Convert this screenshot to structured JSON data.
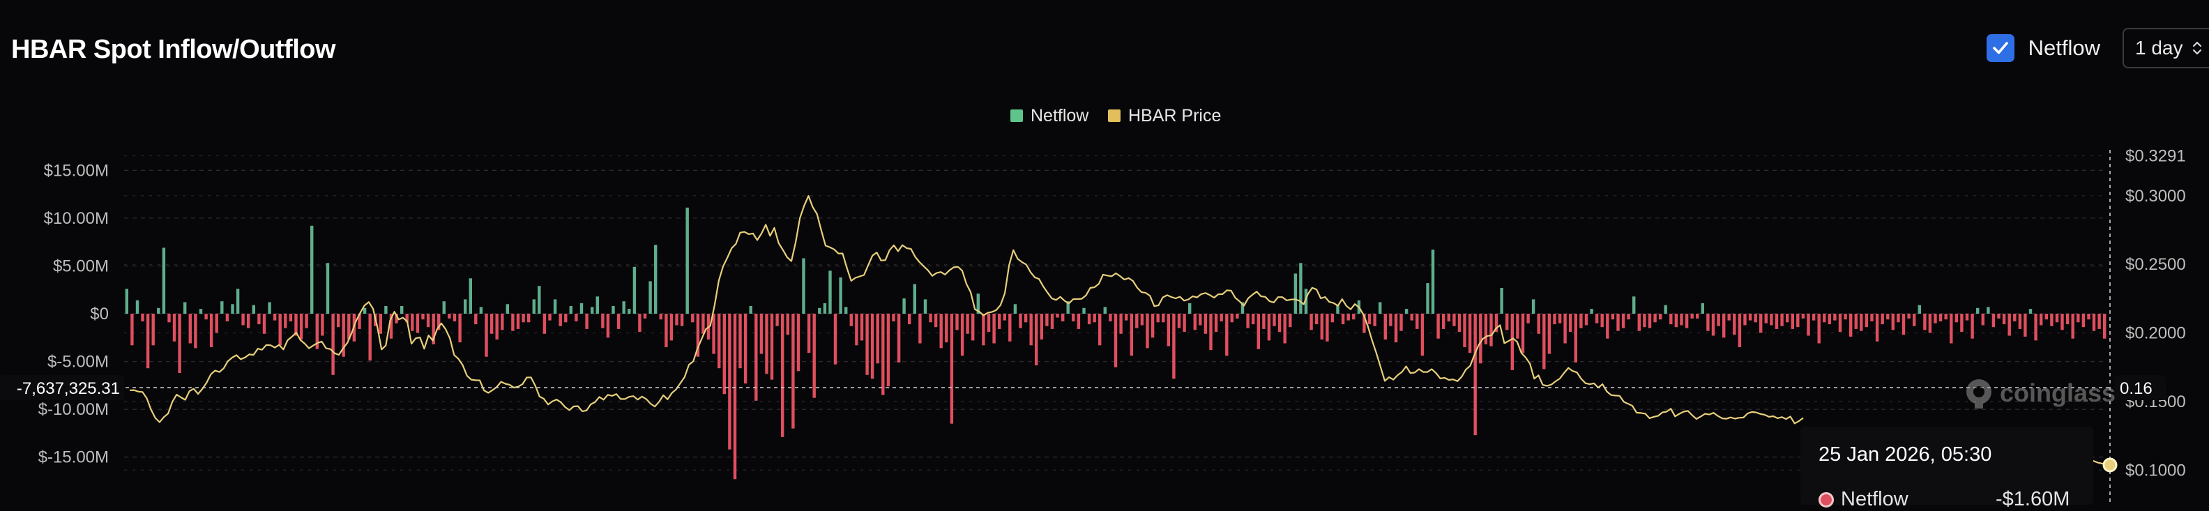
{
  "header": {
    "title": "HBAR Spot Inflow/Outflow",
    "netflow_toggle_label": "Netflow",
    "netflow_checked": true,
    "interval_select_value": "1 day"
  },
  "tooltip": {
    "date": "25 Jan 2026, 05:30",
    "series_label": "Netflow",
    "series_value": "-$1.60M"
  },
  "crosshair": {
    "left_value_label": "-7,637,325.31",
    "right_value_label": "0.16"
  },
  "watermark": "coinglass",
  "colors": {
    "inflow": "#5fae8e",
    "outflow": "#e04f5f",
    "price_line": "#e7cf7c",
    "legend_netflow": "#5fc48a",
    "legend_price": "#e3be5d",
    "background": "#070709",
    "grid": "#2a2a2e"
  },
  "chart_data": {
    "type": "bar",
    "legend": [
      "Netflow",
      "HBAR Price"
    ],
    "legend_position": "top-center",
    "grid": true,
    "left_axis": {
      "ticks": [
        15000000,
        10000000,
        5000000,
        0,
        -5000000,
        -10000000,
        -15000000
      ],
      "tick_labels": [
        "$15.00M",
        "$10.00M",
        "$5.00M",
        "$0",
        "$-5.00M",
        "$-10.00M",
        "$-15.00M"
      ],
      "ylim": [
        -17500000,
        17500000
      ]
    },
    "right_axis": {
      "ticks": [
        0.3291,
        0.3,
        0.25,
        0.2,
        0.15,
        0.1
      ],
      "tick_labels": [
        "$0.3291",
        "$0.3000",
        "$0.2500",
        "$0.2000",
        "$0.1500",
        "$0.1000"
      ],
      "ylim": [
        0.092,
        0.336
      ]
    },
    "series": [
      {
        "name": "Netflow",
        "values": [
          2.6,
          -3.3,
          1.4,
          -0.8,
          -5.7,
          -3.3,
          0.6,
          6.9,
          -0.9,
          -2.9,
          -6.2,
          1.2,
          -3.1,
          -3.6,
          0.5,
          -0.6,
          -3.5,
          -2.0,
          1.3,
          -0.8,
          1.0,
          2.6,
          -1.2,
          -1.5,
          0.9,
          -1.1,
          -2.1,
          1.2,
          -0.7,
          -3.3,
          -1.5,
          -0.8,
          -2.3,
          -2.7,
          -1.5,
          9.2,
          -3.7,
          -2.3,
          5.3,
          -6.4,
          -1.4,
          -4.5,
          -2.7,
          -2.9,
          -1.6,
          0.6,
          -4.9,
          -1.3,
          -2.1,
          0.8,
          -2.6,
          -1.0,
          0.8,
          -0.9,
          -1.8,
          -2.0,
          -0.6,
          -1.4,
          -3.2,
          -1.7,
          1.3,
          -0.5,
          -0.8,
          -3.0,
          1.5,
          3.7,
          -1.1,
          0.7,
          -4.5,
          -2.1,
          -2.7,
          -1.7,
          1.0,
          -1.8,
          -1.6,
          -0.9,
          -0.9,
          1.5,
          2.9,
          -2.1,
          -0.7,
          1.5,
          -1.3,
          -0.9,
          0.8,
          -0.8,
          1.1,
          -1.6,
          0.7,
          1.8,
          -1.5,
          -2.5,
          0.8,
          -1.6,
          1.3,
          0.5,
          4.9,
          -1.9,
          -0.5,
          3.4,
          7.2,
          -0.6,
          -3.5,
          -2.8,
          -1.2,
          -1.3,
          11.1,
          -0.9,
          -4.5,
          -2.1,
          -2.7,
          -4.2,
          -5.7,
          -8.4,
          -14.2,
          -17.3,
          -5.7,
          -7.3,
          0.8,
          -9.1,
          -4.2,
          -6.3,
          -6.9,
          -1.3,
          -12.9,
          -2.2,
          -12.0,
          -6.0,
          5.8,
          -4.1,
          -8.8,
          0.6,
          1.1,
          4.5,
          -5.3,
          3.8,
          0.7,
          -1.3,
          -3.3,
          -2.8,
          -6.4,
          -6.8,
          -5.2,
          -8.5,
          -7.6,
          -0.8,
          -5.1,
          1.6,
          -1.1,
          3.1,
          -3.1,
          1.5,
          -0.9,
          -1.4,
          -3.6,
          -3.0,
          -11.5,
          -1.7,
          -4.4,
          -2.1,
          -2.8,
          2.1,
          -3.3,
          -1.9,
          -3.1,
          -1.6,
          -0.7,
          -2.9,
          1.0,
          -1.5,
          -0.9,
          -3.3,
          -5.4,
          -2.7,
          -1.3,
          -1.6,
          -0.4,
          -0.8,
          1.3,
          -0.8,
          -1.6,
          0.6,
          -1.1,
          -0.9,
          -3.3,
          0.7,
          -0.8,
          -5.6,
          -2.1,
          -0.7,
          -4.4,
          -1.5,
          -1.2,
          -3.6,
          -2.5,
          -0.9,
          -0.9,
          -3.4,
          -6.8,
          -1.5,
          -1.9,
          1.1,
          -1.7,
          -1.2,
          -2.1,
          -3.8,
          -1.9,
          -0.8,
          -4.4,
          -0.9,
          -0.5,
          1.2,
          -1.5,
          -1.1,
          -3.7,
          -1.6,
          -2.8,
          -1.3,
          -1.9,
          -3.1,
          -1.4,
          4.2,
          5.3,
          2.6,
          -1.7,
          -1.1,
          -2.7,
          -2.9,
          -0.9,
          0.9,
          -1.1,
          -0.7,
          -0.6,
          1.4,
          -2.0,
          -1.1,
          -1.3,
          1.2,
          -2.7,
          -1.3,
          -3.0,
          -1.8,
          0.5,
          -0.7,
          -1.6,
          -4.4,
          3.2,
          6.7,
          -2.6,
          -1.6,
          -0.8,
          -1.3,
          -1.9,
          -3.5,
          -4.1,
          -12.7,
          -5.2,
          -3.2,
          -3.4,
          -1.9,
          2.7,
          -1.7,
          -5.9,
          -2.6,
          -4.1,
          -1.0,
          1.5,
          -2.1,
          -5.8,
          -4.2,
          -1.1,
          -1.0,
          -3.1,
          -1.9,
          -5.1,
          -1.5,
          -1.2,
          0.5,
          -1.0,
          -1.4,
          -2.6,
          -0.6,
          -1.8,
          -1.5,
          -0.6,
          1.8,
          -1.8,
          -1.4,
          -1.5,
          -0.9,
          -0.6,
          0.9,
          -1.1,
          -1.4,
          -1.2,
          -1.5,
          -0.5,
          -0.5,
          1.1,
          -1.8,
          -2.3,
          -1.3,
          -2.5,
          -0.7,
          -2.2,
          -3.5,
          -1.2,
          -0.7,
          -0.9,
          -2.0,
          -1.0,
          -1.2,
          -1.6,
          -1.3,
          -0.9,
          -1.6,
          -1.4,
          -0.5,
          -2.3,
          -0.7,
          -3.1,
          -0.9,
          -1.1,
          -0.7,
          -1.9,
          -0.6,
          -2.4,
          -1.6,
          -1.8,
          -1.4,
          -0.8,
          -2.9,
          -1.1,
          -0.6,
          -1.7,
          -0.9,
          -2.2,
          -0.5,
          -1.3,
          0.9,
          -1.7,
          -2.0,
          -1.0,
          -0.8,
          -0.6,
          -3.1,
          -0.9,
          -1.9,
          -0.7,
          -2.6,
          0.6,
          -1.2,
          0.7,
          -1.4,
          -0.5,
          -1.1,
          -2.3,
          -0.8,
          -1.6,
          -2.4,
          0.5,
          -2.8,
          -1.2,
          -0.6,
          -1.3,
          -0.9,
          -1.7,
          -1.1,
          -2.6,
          -0.9,
          -1.4,
          -0.6,
          -1.8,
          -1.6,
          -2.6
        ]
      },
      {
        "name": "HBAR Price",
        "values": [
          0.1582,
          0.1583,
          0.1572,
          0.1569,
          0.1523,
          0.1441,
          0.138,
          0.1349,
          0.1386,
          0.1412,
          0.1498,
          0.155,
          0.153,
          0.1512,
          0.1575,
          0.1593,
          0.1555,
          0.1591,
          0.1636,
          0.1697,
          0.1725,
          0.1715,
          0.1741,
          0.1794,
          0.182,
          0.1838,
          0.1808,
          0.1821,
          0.1843,
          0.184,
          0.1885,
          0.1877,
          0.1912,
          0.191,
          0.1893,
          0.1913,
          0.1879,
          0.1947,
          0.1973,
          0.2003,
          0.1948,
          0.1922,
          0.1888,
          0.1908,
          0.1927,
          0.1937,
          0.1888,
          0.1882,
          0.1852,
          0.184,
          0.1888,
          0.1928,
          0.2,
          0.2086,
          0.2146,
          0.22,
          0.2225,
          0.2176,
          0.2046,
          0.1879,
          0.1908,
          0.209,
          0.2154,
          0.2098,
          0.2111,
          0.2084,
          0.1921,
          0.1961,
          0.1967,
          0.1885,
          0.1982,
          0.1945,
          0.2026,
          0.207,
          0.2027,
          0.1961,
          0.1839,
          0.1811,
          0.1765,
          0.1688,
          0.1659,
          0.1655,
          0.1654,
          0.158,
          0.1563,
          0.1583,
          0.1606,
          0.1644,
          0.1629,
          0.1622,
          0.1601,
          0.1608,
          0.1626,
          0.1675,
          0.1676,
          0.1616,
          0.1536,
          0.152,
          0.1478,
          0.1501,
          0.1514,
          0.1494,
          0.1459,
          0.1437,
          0.1464,
          0.1466,
          0.1429,
          0.1434,
          0.1479,
          0.1495,
          0.1533,
          0.1513,
          0.1549,
          0.1541,
          0.1554,
          0.1518,
          0.1518,
          0.1534,
          0.1539,
          0.1513,
          0.1536,
          0.1518,
          0.1484,
          0.1463,
          0.1498,
          0.1546,
          0.1516,
          0.1562,
          0.1589,
          0.1634,
          0.1679,
          0.1768,
          0.1793,
          0.1886,
          0.1958,
          0.2028,
          0.2052,
          0.2202,
          0.2382,
          0.2485,
          0.2548,
          0.2618,
          0.2649,
          0.2731,
          0.2737,
          0.272,
          0.2725,
          0.2677,
          0.2725,
          0.2789,
          0.2708,
          0.2766,
          0.2656,
          0.2606,
          0.2551,
          0.2524,
          0.2661,
          0.2838,
          0.2928,
          0.2999,
          0.2917,
          0.2867,
          0.2748,
          0.2636,
          0.2625,
          0.2609,
          0.2579,
          0.2579,
          0.2473,
          0.238,
          0.2402,
          0.2412,
          0.2422,
          0.2495,
          0.2564,
          0.2587,
          0.2528,
          0.2531,
          0.2604,
          0.2639,
          0.2596,
          0.264,
          0.2618,
          0.2613,
          0.2555,
          0.2516,
          0.2486,
          0.2456,
          0.2416,
          0.2437,
          0.2444,
          0.2425,
          0.2456,
          0.2478,
          0.2482,
          0.2454,
          0.2357,
          0.2296,
          0.2172,
          0.2155,
          0.2128,
          0.2147,
          0.2153,
          0.2167,
          0.2204,
          0.229,
          0.2494,
          0.2604,
          0.254,
          0.2516,
          0.2499,
          0.2444,
          0.2405,
          0.2393,
          0.2339,
          0.2294,
          0.2252,
          0.224,
          0.2263,
          0.2234,
          0.2214,
          0.2246,
          0.2247,
          0.2249,
          0.2273,
          0.2328,
          0.2333,
          0.2357,
          0.2425,
          0.2418,
          0.2413,
          0.2435,
          0.2414,
          0.2389,
          0.24,
          0.2379,
          0.233,
          0.2297,
          0.2292,
          0.227,
          0.2195,
          0.2201,
          0.2259,
          0.2275,
          0.2262,
          0.2252,
          0.2264,
          0.2235,
          0.2244,
          0.2267,
          0.2259,
          0.2283,
          0.2291,
          0.2276,
          0.2257,
          0.2282,
          0.2283,
          0.2311,
          0.2308,
          0.2255,
          0.223,
          0.2198,
          0.2253,
          0.2279,
          0.2301,
          0.2267,
          0.2263,
          0.2231,
          0.2222,
          0.2261,
          0.2261,
          0.2237,
          0.2243,
          0.2245,
          0.2234,
          0.2209,
          0.2284,
          0.2329,
          0.2317,
          0.2252,
          0.2262,
          0.2226,
          0.2218,
          0.2198,
          0.2246,
          0.2197,
          0.2172,
          0.221,
          0.2185,
          0.2133,
          0.2052,
          0.1948,
          0.1854,
          0.1752,
          0.165,
          0.1677,
          0.1659,
          0.1692,
          0.1715,
          0.1756,
          0.1707,
          0.1711,
          0.1736,
          0.1715,
          0.1715,
          0.1736,
          0.1707,
          0.1668,
          0.1673,
          0.1657,
          0.1661,
          0.1648,
          0.168,
          0.1733,
          0.176,
          0.1841,
          0.1913,
          0.1958,
          0.1978,
          0.1983,
          0.2031,
          0.2056,
          0.1925,
          0.1941,
          0.196,
          0.1935,
          0.1854,
          0.1821,
          0.1775,
          0.1666,
          0.1691,
          0.1621,
          0.1614,
          0.1623,
          0.1647,
          0.1667,
          0.1708,
          0.1745,
          0.1722,
          0.1712,
          0.1666,
          0.1633,
          0.1626,
          0.1632,
          0.1601,
          0.1626,
          0.1573,
          0.1547,
          0.1543,
          0.1541,
          0.1497,
          0.1483,
          0.1468,
          0.1418,
          0.1416,
          0.1411,
          0.1378,
          0.1388,
          0.1395,
          0.142,
          0.1426,
          0.1447,
          0.1391,
          0.141,
          0.1426,
          0.1432,
          0.14,
          0.1373,
          0.139,
          0.141,
          0.1405,
          0.1417,
          0.1395,
          0.1377,
          0.1374,
          0.1384,
          0.1375,
          0.1381,
          0.1383,
          0.1413,
          0.1424,
          0.142,
          0.1409,
          0.1403,
          0.1388,
          0.1393,
          0.1378,
          0.1386,
          0.1372,
          0.139,
          0.134,
          0.1357,
          0.138
        ]
      }
    ]
  }
}
